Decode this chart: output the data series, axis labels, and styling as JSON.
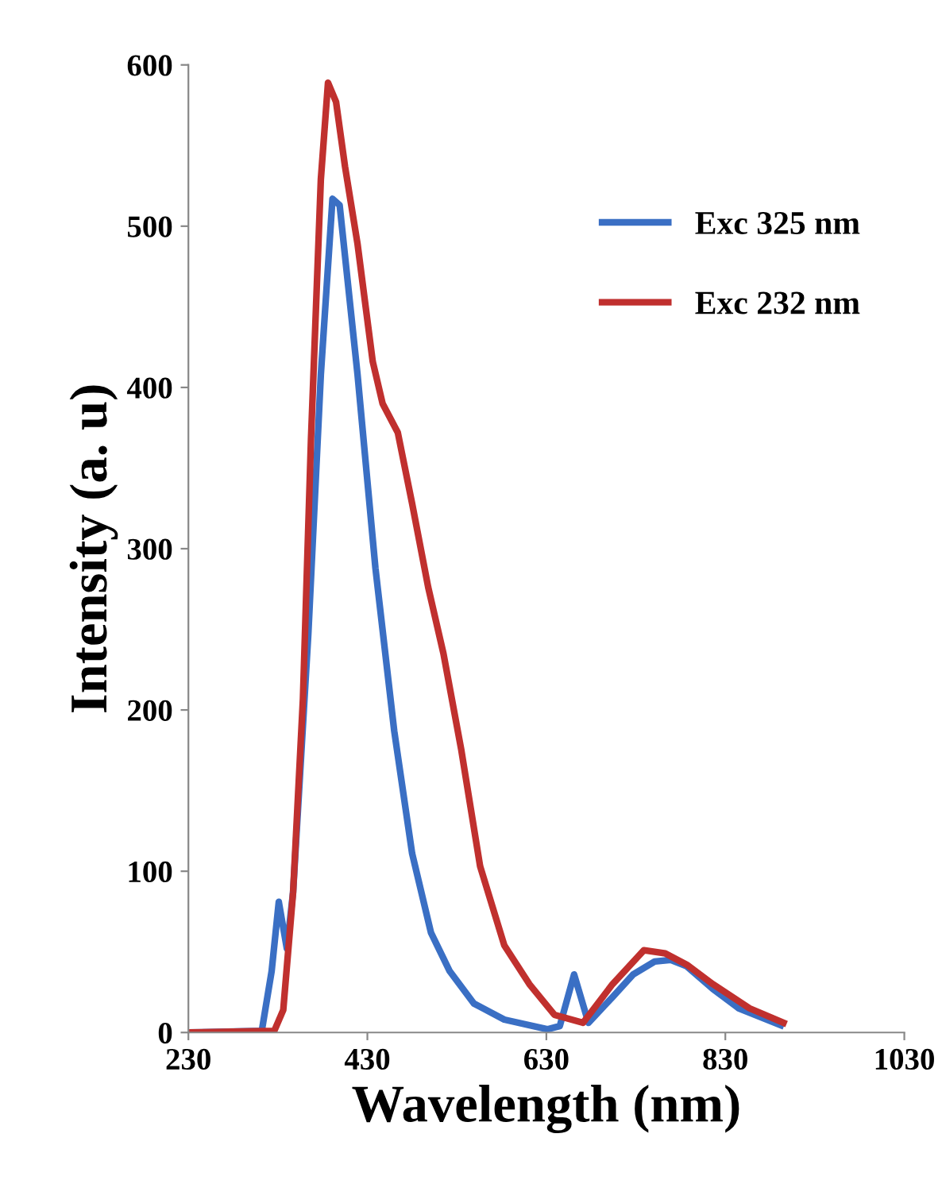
{
  "chart_data": {
    "type": "line",
    "xlabel": "Wavelength (nm)",
    "ylabel": "Intensity (a. u)",
    "xlim": [
      230,
      1030
    ],
    "xticks": [
      230,
      430,
      630,
      830,
      1030
    ],
    "ylim": [
      0,
      600
    ],
    "yticks": [
      0,
      100,
      200,
      300,
      400,
      500,
      600
    ],
    "grid": false,
    "legend": "top right",
    "marker": "none",
    "line_style": "solid",
    "series": [
      {
        "name": "Exc 325 nm",
        "color": "#3a6fc4",
        "x": [
          230,
          312,
          323,
          331,
          340,
          347,
          364,
          378,
          391,
          399,
          419,
          439,
          460,
          480,
          501,
          522,
          549,
          583,
          631,
          645,
          661,
          677,
          704,
          727,
          751,
          769,
          787,
          816,
          845,
          892
        ],
        "values": [
          0,
          1,
          38,
          81,
          52,
          87,
          247,
          408,
          517,
          513,
          408,
          288,
          187,
          111,
          62,
          38,
          18,
          8,
          2,
          4,
          36,
          6,
          22,
          36,
          44,
          45,
          41,
          27,
          15,
          4.5
        ]
      },
      {
        "name": "Exc 232 nm",
        "color": "#c0302e",
        "x": [
          230,
          326,
          336,
          347,
          358,
          367,
          378,
          386,
          395,
          405,
          419,
          436,
          447,
          464,
          480,
          498,
          515,
          535,
          556,
          583,
          611,
          639,
          671,
          704,
          739,
          763,
          787,
          816,
          857,
          895
        ],
        "values": [
          0,
          1,
          14,
          87,
          207,
          368,
          529,
          589,
          577,
          537,
          489,
          416,
          390,
          372,
          328,
          276,
          235,
          175,
          103,
          54,
          30,
          11,
          6,
          30,
          51,
          49,
          42,
          30,
          15,
          6
        ]
      }
    ]
  }
}
